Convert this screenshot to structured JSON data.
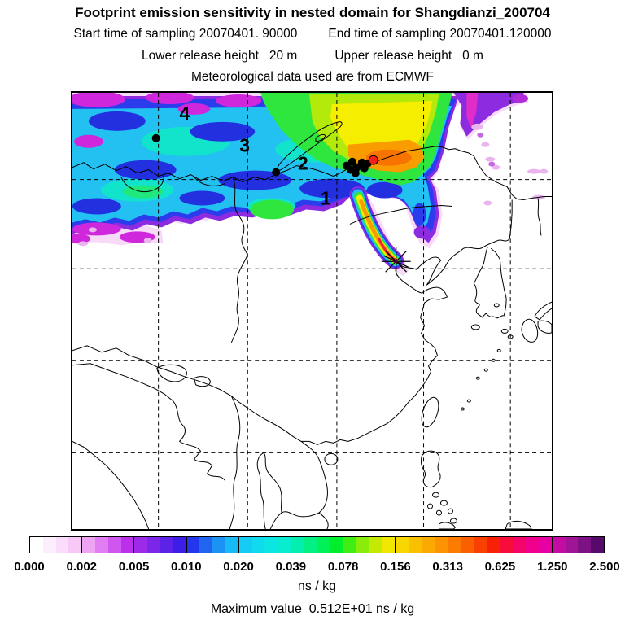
{
  "header": {
    "title": "Footprint emission sensitivity in nested domain for Shangdianzi_200704",
    "start_time": "Start time of sampling 20070401. 90000",
    "end_time": "End time of sampling 20070401.120000",
    "lower_release": "Lower release height   20 m",
    "upper_release": "Upper release height   0 m",
    "met_source": "Meteorological data used are from ECMWF"
  },
  "map": {
    "station_labels": [
      "4",
      "3",
      "2",
      "1"
    ],
    "red_dot_color": "#f32018",
    "marker_color": "#000000"
  },
  "colorbar": {
    "tick_labels": [
      "0.000",
      "0.002",
      "0.005",
      "0.010",
      "0.020",
      "0.039",
      "0.078",
      "0.156",
      "0.313",
      "0.625",
      "1.250",
      "2.500"
    ],
    "unit": "ns / kg",
    "segments": [
      [
        "#ffffff",
        "#fdeefd",
        "#fbdcfa",
        "#f8c8f6"
      ],
      [
        "#eea4f2",
        "#e07df0",
        "#cf56ee",
        "#bc30ec"
      ],
      [
        "#9c2ae8",
        "#7c26e8",
        "#5c22e8",
        "#3c1ee8"
      ],
      [
        "#2436ec",
        "#2064f0",
        "#1c92f4",
        "#18baf6"
      ],
      [
        "#14ccf4",
        "#10daee",
        "#0ce6e2",
        "#08ecd0"
      ],
      [
        "#04eeae",
        "#02f084",
        "#00f058",
        "#00ee2c"
      ],
      [
        "#40ee14",
        "#8aec0a",
        "#c4ea04",
        "#f0e800"
      ],
      [
        "#f8d600",
        "#f9c000",
        "#faaa00",
        "#fb9400"
      ],
      [
        "#fb7c00",
        "#fb6000",
        "#fa4000",
        "#f92008"
      ],
      [
        "#f80c3c",
        "#f40468",
        "#ee008c",
        "#e600a4"
      ],
      [
        "#c40ca4",
        "#a01496",
        "#7c1284",
        "#580a6c"
      ]
    ]
  },
  "footer": {
    "max_value_line": "Maximum value  0.512E+01 ns / kg"
  },
  "chart_data": {
    "type": "heatmap",
    "title": "Footprint emission sensitivity in nested domain for Shangdianzi_200704",
    "subtitle_lines": [
      "Start time of sampling 20070401. 90000    End time of sampling 20070401.120000",
      "Lower release height   20 m      Upper release height   0 m",
      "Meteorological data used are from ECMWF"
    ],
    "colorbar_levels": [
      0.0,
      0.002,
      0.005,
      0.01,
      0.02,
      0.039,
      0.078,
      0.156,
      0.313,
      0.625,
      1.25,
      2.5
    ],
    "unit": "ns / kg",
    "maximum_value": "0.512E+01 ns / kg",
    "legend_position": "bottom",
    "numbered_annotations": [
      "1",
      "2",
      "3",
      "4"
    ],
    "markers": {
      "black_station_dots": 9,
      "red_dot": 1,
      "receptor_star": true
    },
    "grid": "dashed lat-lon graticule",
    "field_description": "High sensitivity plume over Mongolia/NE China narrowing to receptor star near 40N,117E"
  }
}
